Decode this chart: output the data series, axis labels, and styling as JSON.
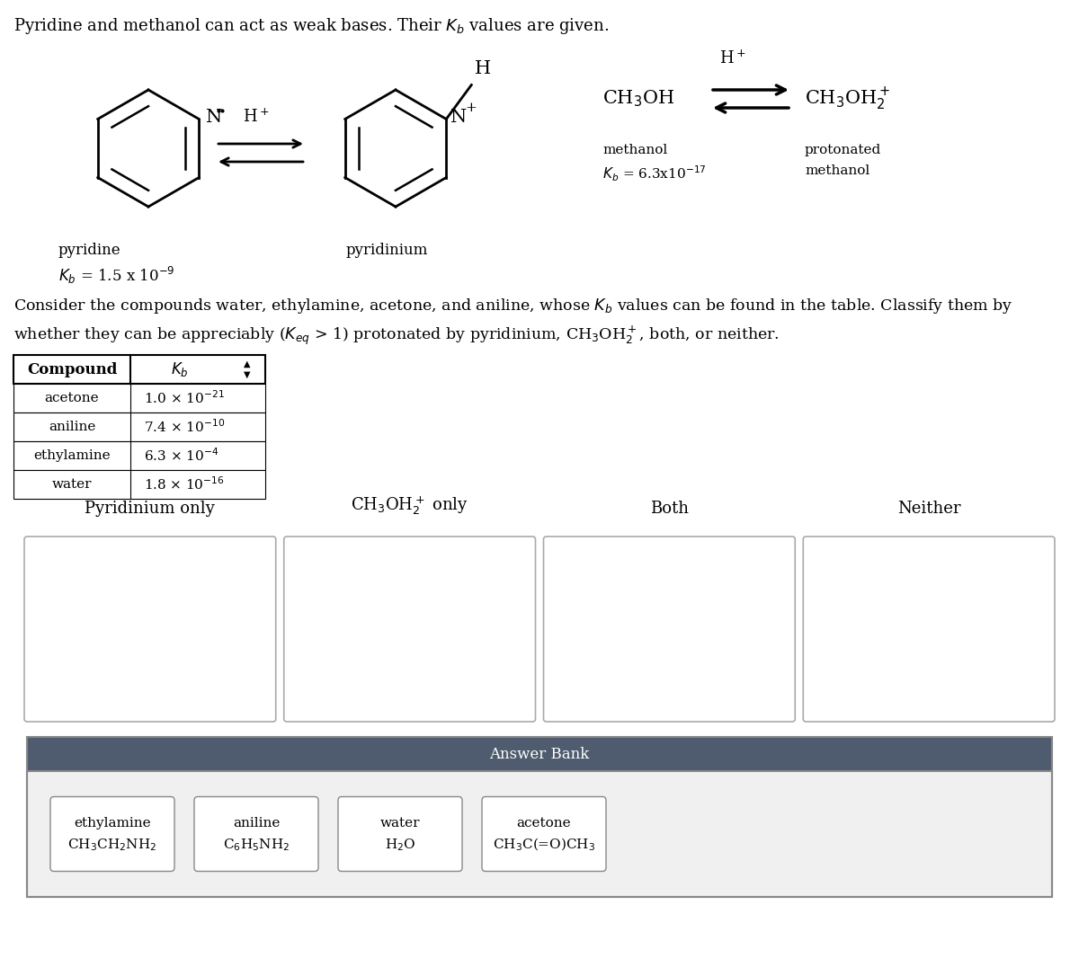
{
  "bg_color": "#ffffff",
  "text_color": "#000000",
  "header_text_color": "#ffffff",
  "answer_bank_bg": "#4f5b6e",
  "table_data": [
    [
      "acetone",
      "1.0 × 10$^{-21}$"
    ],
    [
      "aniline",
      "7.4 × 10$^{-10}$"
    ],
    [
      "ethylamine",
      "6.3 × 10$^{-4}$"
    ],
    [
      "water",
      "1.8 × 10$^{-16}$"
    ]
  ],
  "answer_bank_items": [
    [
      "ethylamine",
      "CH$_3$CH$_2$NH$_2$"
    ],
    [
      "aniline",
      "C$_6$H$_5$NH$_2$"
    ],
    [
      "water",
      "H$_2$O"
    ],
    [
      "acetone",
      "CH$_3$C(=O)CH$_3$"
    ]
  ]
}
